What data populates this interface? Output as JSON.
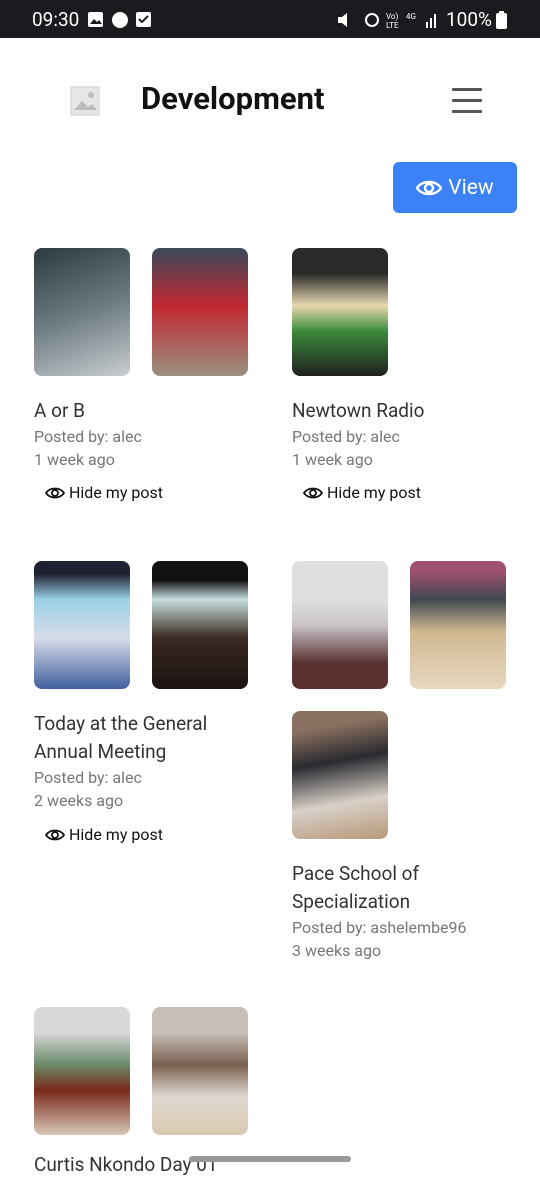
{
  "status_bar": {
    "time": "09:30",
    "battery": "100%"
  },
  "header": {
    "title": "Development"
  },
  "view_button": "View",
  "posts": [
    {
      "title": "A or B",
      "posted_by": "Posted by: alec",
      "time": "1 week ago",
      "action": "Hide my post"
    },
    {
      "title": "Newtown Radio",
      "posted_by": "Posted by: alec",
      "time": "1 week ago",
      "action": "Hide my post"
    },
    {
      "title": "Today at the General Annual Meeting",
      "posted_by": "Posted by: alec",
      "time": "2 weeks ago",
      "action": "Hide my post"
    },
    {
      "title": "Pace School of Specialization",
      "posted_by": "Posted by: ashelembe96",
      "time": "3 weeks ago"
    },
    {
      "title": "Curtis Nkondo Day 01"
    }
  ]
}
